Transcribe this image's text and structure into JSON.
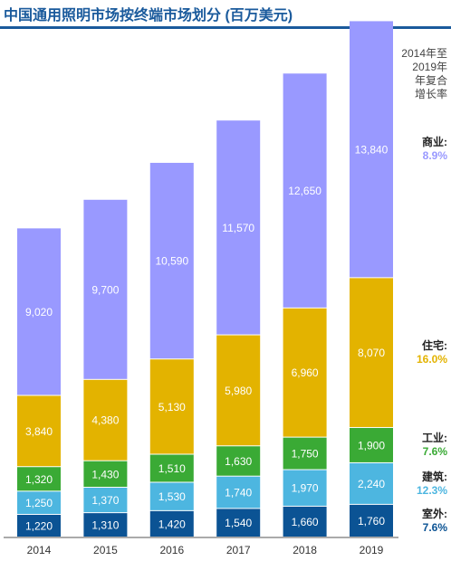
{
  "title": "中国通用照明市场按终端市场划分 (百万美元)",
  "cagr_header": [
    "2014年至",
    "2019年",
    "年复合",
    "增长率"
  ],
  "colors": {
    "outdoor": "#0b5394",
    "building": "#4db6e0",
    "industrial": "#3aaa35",
    "residential": "#e3b300",
    "commercial": "#9999ff",
    "title": "#1a5a9c"
  },
  "segment_labels": [
    {
      "key": "commercial",
      "name": "商业:",
      "cagr": "8.9%"
    },
    {
      "key": "residential",
      "name": "住宅:",
      "cagr": "16.0%"
    },
    {
      "key": "industrial",
      "name": "工业:",
      "cagr": "7.6%"
    },
    {
      "key": "building",
      "name": "建筑:",
      "cagr": "12.3%"
    },
    {
      "key": "outdoor",
      "name": "室外:",
      "cagr": "7.6%"
    }
  ],
  "chart_data": {
    "type": "bar",
    "stacked": true,
    "title": "中国通用照明市场按终端市场划分 (百万美元)",
    "categories": [
      "2014",
      "2015",
      "2016",
      "2017",
      "2018",
      "2019"
    ],
    "series": [
      {
        "key": "outdoor",
        "values": [
          1220,
          1310,
          1420,
          1540,
          1660,
          1760
        ],
        "labels": [
          "1,220",
          "1,310",
          "1,420",
          "1,540",
          "1,660",
          "1,760"
        ]
      },
      {
        "key": "building",
        "values": [
          1250,
          1370,
          1530,
          1740,
          1970,
          2240
        ],
        "labels": [
          "1,250",
          "1,370",
          "1,530",
          "1,740",
          "1,970",
          "2,240"
        ]
      },
      {
        "key": "industrial",
        "values": [
          1320,
          1430,
          1510,
          1630,
          1750,
          1900
        ],
        "labels": [
          "1,320",
          "1,430",
          "1,510",
          "1,630",
          "1,750",
          "1,900"
        ]
      },
      {
        "key": "residential",
        "values": [
          3840,
          4380,
          5130,
          5980,
          6960,
          8070
        ],
        "labels": [
          "3,840",
          "4,380",
          "5,130",
          "5,980",
          "6,960",
          "8,070"
        ]
      },
      {
        "key": "commercial",
        "values": [
          9020,
          9700,
          10590,
          11570,
          12650,
          13840
        ],
        "labels": [
          "9,020",
          "9,700",
          "10,590",
          "11,570",
          "12,650",
          "13,840"
        ]
      }
    ],
    "ylim": [
      0,
      29000
    ],
    "grid": false,
    "legend": "right"
  }
}
